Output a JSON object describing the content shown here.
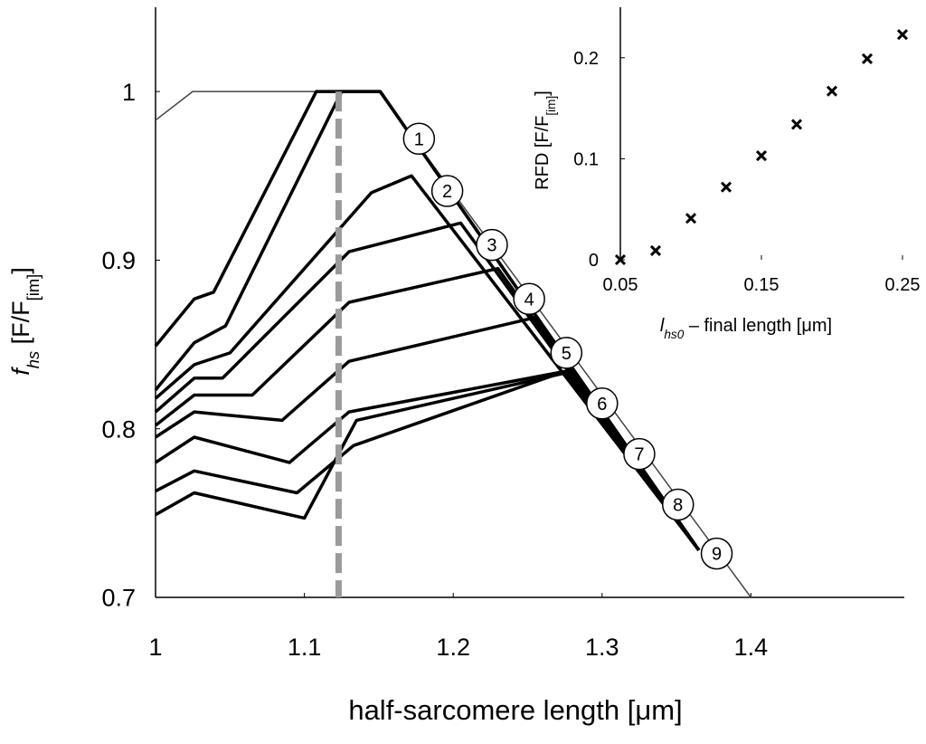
{
  "chart_data": [
    {
      "type": "line",
      "xlabel": "half-sarcomere length [μm]",
      "ylabel": [
        "f",
        "hs",
        " [F/F",
        "[im]",
        "]"
      ],
      "xlim": [
        1,
        1.5
      ],
      "ylim": [
        0.7,
        1.05
      ],
      "xticks": [
        1,
        1.1,
        1.2,
        1.3,
        1.4
      ],
      "yticks": [
        0.7,
        0.8,
        0.9,
        1
      ],
      "vline": {
        "x": 1.123,
        "color": "#9a9a9a"
      },
      "series": [
        {
          "color": "#444444",
          "width": 1.5,
          "x": [
            1,
            1.025,
            1.15,
            1.4
          ],
          "values": [
            0.983,
            1.0,
            1.0,
            0.7
          ]
        },
        {
          "color": "#000000",
          "width": 3.5,
          "x": [
            1,
            1.026,
            1.039,
            1.108,
            1.151,
            1.365
          ],
          "values": [
            0.849,
            0.877,
            0.881,
            1.0,
            1.0,
            0.728
          ]
        },
        {
          "color": "#000000",
          "width": 3.5,
          "x": [
            1,
            1.026,
            1.047,
            1.125,
            1.151,
            1.365
          ],
          "values": [
            0.823,
            0.851,
            0.861,
            1.0,
            1.0,
            0.728
          ]
        },
        {
          "color": "#000000",
          "width": 3.5,
          "x": [
            1,
            1.026,
            1.05,
            1.145,
            1.172,
            1.365
          ],
          "values": [
            0.818,
            0.838,
            0.845,
            0.94,
            0.95,
            0.728
          ]
        },
        {
          "color": "#000000",
          "width": 3.5,
          "x": [
            1,
            1.026,
            1.045,
            1.13,
            1.205,
            1.365
          ],
          "values": [
            0.81,
            0.83,
            0.83,
            0.905,
            0.922,
            0.728
          ]
        },
        {
          "color": "#000000",
          "width": 3.5,
          "x": [
            1,
            1.026,
            1.065,
            1.13,
            1.23,
            1.365
          ],
          "values": [
            0.802,
            0.82,
            0.82,
            0.875,
            0.895,
            0.728
          ]
        },
        {
          "color": "#000000",
          "width": 3.5,
          "x": [
            1,
            1.026,
            1.085,
            1.13,
            1.255,
            1.365
          ],
          "values": [
            0.795,
            0.81,
            0.805,
            0.84,
            0.866,
            0.728
          ]
        },
        {
          "color": "#000000",
          "width": 3.5,
          "x": [
            1,
            1.026,
            1.09,
            1.13,
            1.275,
            1.365
          ],
          "values": [
            0.78,
            0.795,
            0.78,
            0.81,
            0.834,
            0.728
          ]
        },
        {
          "color": "#000000",
          "width": 3.5,
          "x": [
            1,
            1.026,
            1.095,
            1.133,
            1.275,
            1.365
          ],
          "values": [
            0.763,
            0.775,
            0.762,
            0.79,
            0.834,
            0.728
          ]
        },
        {
          "color": "#000000",
          "width": 3.5,
          "x": [
            1,
            1.026,
            1.1,
            1.135,
            1.275,
            1.365
          ],
          "values": [
            0.749,
            0.762,
            0.747,
            0.805,
            0.833,
            0.728
          ]
        }
      ],
      "annotations": [
        {
          "text": "1",
          "x": 1.177,
          "y": 0.972
        },
        {
          "text": "2",
          "x": 1.196,
          "y": 0.941
        },
        {
          "text": "3",
          "x": 1.226,
          "y": 0.909
        },
        {
          "text": "4",
          "x": 1.251,
          "y": 0.877
        },
        {
          "text": "5",
          "x": 1.276,
          "y": 0.845
        },
        {
          "text": "6",
          "x": 1.3,
          "y": 0.815
        },
        {
          "text": "7",
          "x": 1.325,
          "y": 0.785
        },
        {
          "text": "8",
          "x": 1.351,
          "y": 0.755
        },
        {
          "text": "9",
          "x": 1.377,
          "y": 0.726
        }
      ]
    },
    {
      "type": "scatter",
      "xlabel": [
        "l",
        "hs0",
        " – final length [μm]"
      ],
      "ylabel": [
        "RFD [F/F",
        "[im]",
        "]"
      ],
      "xlim": [
        0.05,
        0.25
      ],
      "ylim": [
        0,
        0.25
      ],
      "xticks": [
        0.05,
        0.15,
        0.25
      ],
      "yticks": [
        0,
        0.1,
        0.2
      ],
      "color": "#000000",
      "x": [
        0.05,
        0.075,
        0.1,
        0.125,
        0.15,
        0.175,
        0.2,
        0.225,
        0.25
      ],
      "values": [
        0,
        0.009,
        0.041,
        0.072,
        0.103,
        0.134,
        0.167,
        0.199,
        0.223
      ]
    }
  ]
}
